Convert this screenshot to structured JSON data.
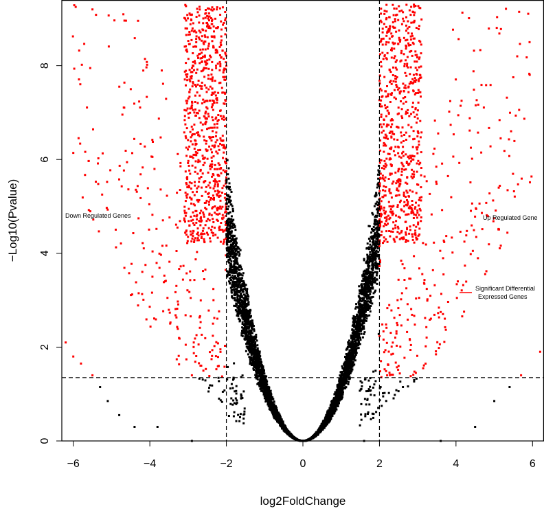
{
  "chart_data": {
    "type": "scatter",
    "xlabel": "log2FoldChange",
    "ylabel": "−Log10(Pvalue)",
    "xlim": [
      -6.3,
      6.3
    ],
    "ylim": [
      0,
      9.4
    ],
    "x_ticks": [
      -6,
      -4,
      -2,
      0,
      2,
      4,
      6
    ],
    "y_ticks": [
      0,
      2,
      4,
      6,
      8
    ],
    "x_tick_labels": [
      "−6",
      "−4",
      "−2",
      "0",
      "2",
      "4",
      "6"
    ],
    "y_tick_labels": [
      "0",
      "2",
      "4",
      "6",
      "8"
    ],
    "fold_change_thresholds": [
      -2,
      2
    ],
    "pvalue_threshold": 1.35,
    "grid": false,
    "colors": {
      "significant": "#ff0000",
      "other": "#000000",
      "threshold_line": "#000000"
    },
    "annotations": {
      "down": "Down Regulated Genes",
      "up": "Up Regulated Gene",
      "legend_line1": "Significant Differential",
      "legend_line2": "Expressed Genes"
    },
    "series": [
      {
        "color": "#ff0000",
        "values": "significant genes (|log2FC| > 2, −log10 P > 1.35)"
      },
      {
        "color": "#000000",
        "values": "non-significant genes"
      }
    ],
    "sample_points": {
      "red": [
        [
          -6.4,
          2.6
        ],
        [
          -6.2,
          2.1
        ],
        [
          -6.0,
          1.8
        ],
        [
          -5.8,
          1.65
        ],
        [
          -5.5,
          1.4
        ],
        [
          -2.9,
          1.4
        ],
        [
          -2.6,
          1.5
        ],
        [
          -2.2,
          1.6
        ],
        [
          2.2,
          1.4
        ],
        [
          2.5,
          1.6
        ],
        [
          5.7,
          1.4
        ],
        [
          6.2,
          1.9
        ],
        [
          5.6,
          8.2
        ],
        [
          -5.5,
          9.2
        ],
        [
          2.9,
          9.3
        ],
        [
          -2.3,
          5.0
        ],
        [
          2.3,
          5.0
        ]
      ],
      "black": [
        [
          -5.3,
          1.15
        ],
        [
          -5.1,
          0.85
        ],
        [
          -4.8,
          0.55
        ],
        [
          -4.4,
          0.3
        ],
        [
          -3.8,
          0.3
        ],
        [
          -2.9,
          0.0
        ],
        [
          1.6,
          0.0
        ],
        [
          3.6,
          0.0
        ],
        [
          4.5,
          0.3
        ],
        [
          5.0,
          0.85
        ],
        [
          5.4,
          1.15
        ],
        [
          0,
          0
        ]
      ]
    }
  }
}
